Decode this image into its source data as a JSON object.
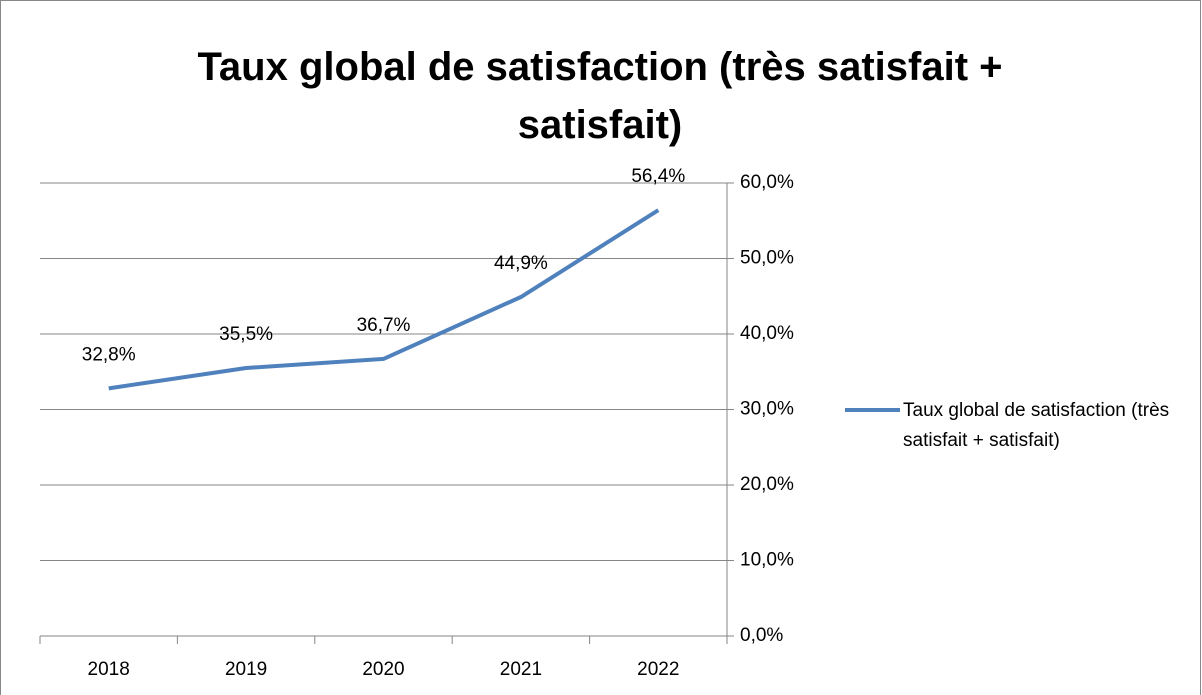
{
  "chart_data": {
    "type": "line",
    "title": "Taux global de satisfaction (très satisfait + satisfait)",
    "categories": [
      "2018",
      "2019",
      "2020",
      "2021",
      "2022"
    ],
    "series": [
      {
        "name": "Taux global de satisfaction (très satisfait + satisfait)",
        "color": "#4f81bd",
        "values": [
          32.8,
          35.5,
          36.7,
          44.9,
          56.4
        ],
        "value_labels": [
          "32,8%",
          "35,5%",
          "36,7%",
          "44,9%",
          "56,4%"
        ]
      }
    ],
    "ylim": [
      0,
      60
    ],
    "yticks": [
      {
        "value": 0,
        "label": "0,0%"
      },
      {
        "value": 10,
        "label": "10,0%"
      },
      {
        "value": 20,
        "label": "20,0%"
      },
      {
        "value": 30,
        "label": "30,0%"
      },
      {
        "value": 40,
        "label": "40,0%"
      },
      {
        "value": 50,
        "label": "50,0%"
      },
      {
        "value": 60,
        "label": "60,0%"
      }
    ],
    "y_axis_side": "right",
    "grid": true,
    "legend": "right"
  }
}
